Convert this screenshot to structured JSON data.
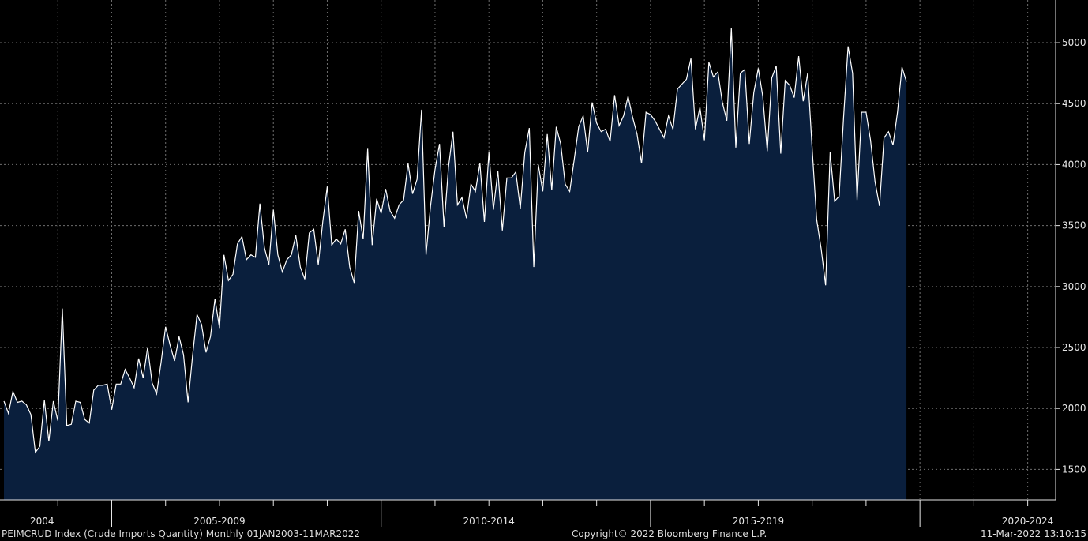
{
  "footer": {
    "left": "PEIMCRUD Index (Crude Imports Quantity)  Monthly 01JAN2003-11MAR2022",
    "center": "Copyright© 2022 Bloomberg Finance L.P.",
    "right": "11-Mar-2022 13:10:15"
  },
  "colors": {
    "background": "#000000",
    "area_fill": "#0a1f3d",
    "line": "#ffffff",
    "grid": "#6e6e6e"
  },
  "chart_data": {
    "type": "area",
    "title": "",
    "xlabel": "",
    "ylabel": "",
    "ylim": [
      1250,
      5350
    ],
    "y_ticks": [
      1500,
      2000,
      2500,
      3000,
      3500,
      4000,
      4500,
      5000
    ],
    "x_range": [
      "2003-01",
      "2022-03"
    ],
    "x_period_labels": [
      {
        "label": "2004",
        "year": 2004
      },
      {
        "label": "2005-2009",
        "year": 2007
      },
      {
        "label": "2010-2014",
        "year": 2012
      },
      {
        "label": "2015-2019",
        "year": 2017
      },
      {
        "label": "2020-2024",
        "year": 2022
      }
    ],
    "grid": true,
    "legend": "none",
    "series": [
      {
        "start": "2003-01",
        "frequency": "monthly",
        "values": [
          2060,
          1960,
          2140,
          2050,
          2060,
          2030,
          1950,
          1640,
          1690,
          2070,
          1730,
          2060,
          1900,
          2820,
          1860,
          1870,
          2060,
          2050,
          1910,
          1880,
          2150,
          2190,
          2190,
          2200,
          1990,
          2200,
          2200,
          2320,
          2250,
          2170,
          2410,
          2250,
          2500,
          2210,
          2120,
          2380,
          2670,
          2520,
          2390,
          2590,
          2440,
          2050,
          2430,
          2770,
          2690,
          2460,
          2590,
          2900,
          2660,
          3260,
          3050,
          3100,
          3350,
          3410,
          3220,
          3260,
          3240,
          3680,
          3320,
          3180,
          3630,
          3260,
          3120,
          3220,
          3260,
          3420,
          3160,
          3060,
          3440,
          3470,
          3180,
          3530,
          3820,
          3340,
          3390,
          3350,
          3470,
          3160,
          3030,
          3620,
          3390,
          4130,
          3340,
          3720,
          3600,
          3800,
          3620,
          3560,
          3670,
          3710,
          4010,
          3760,
          3880,
          4450,
          3260,
          3660,
          3960,
          4170,
          3490,
          3980,
          4270,
          3670,
          3730,
          3560,
          3840,
          3780,
          4010,
          3530,
          4100,
          3630,
          3950,
          3460,
          3890,
          3890,
          3940,
          3640,
          4100,
          4300,
          3160,
          4000,
          3780,
          4250,
          3790,
          4310,
          4170,
          3840,
          3780,
          4040,
          4310,
          4400,
          4100,
          4510,
          4340,
          4270,
          4290,
          4190,
          4570,
          4320,
          4400,
          4560,
          4390,
          4250,
          4010,
          4430,
          4410,
          4360,
          4290,
          4220,
          4400,
          4290,
          4620,
          4660,
          4700,
          4870,
          4290,
          4470,
          4200,
          4840,
          4720,
          4760,
          4510,
          4360,
          5120,
          4140,
          4750,
          4780,
          4170,
          4590,
          4790,
          4560,
          4110,
          4710,
          4810,
          4090,
          4690,
          4650,
          4550,
          4890,
          4520,
          4750,
          4130,
          3550,
          3310,
          3010,
          4100,
          3700,
          3740,
          4390,
          4970,
          4750,
          3710,
          4430,
          4430,
          4200,
          3860,
          3660,
          4220,
          4270,
          4160,
          4430,
          4800,
          4680
        ]
      }
    ]
  }
}
